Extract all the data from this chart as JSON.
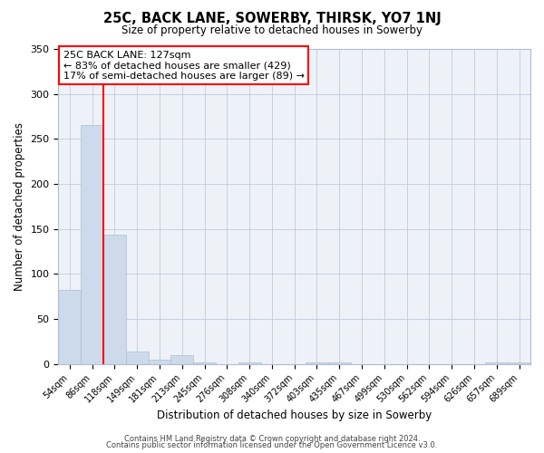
{
  "title": "25C, BACK LANE, SOWERBY, THIRSK, YO7 1NJ",
  "subtitle": "Size of property relative to detached houses in Sowerby",
  "xlabel": "Distribution of detached houses by size in Sowerby",
  "ylabel": "Number of detached properties",
  "bin_labels": [
    "54sqm",
    "86sqm",
    "118sqm",
    "149sqm",
    "181sqm",
    "213sqm",
    "245sqm",
    "276sqm",
    "308sqm",
    "340sqm",
    "372sqm",
    "403sqm",
    "435sqm",
    "467sqm",
    "499sqm",
    "530sqm",
    "562sqm",
    "594sqm",
    "626sqm",
    "657sqm",
    "689sqm"
  ],
  "bar_heights": [
    82,
    265,
    144,
    14,
    5,
    10,
    2,
    0,
    2,
    0,
    0,
    2,
    2,
    0,
    0,
    0,
    0,
    0,
    0,
    2,
    2
  ],
  "bar_color": "#cddaeb",
  "bar_edgecolor": "#a8bdd4",
  "ylim": [
    0,
    350
  ],
  "yticks": [
    0,
    50,
    100,
    150,
    200,
    250,
    300,
    350
  ],
  "annotation_title": "25C BACK LANE: 127sqm",
  "annotation_line1": "← 83% of detached houses are smaller (429)",
  "annotation_line2": "17% of semi-detached houses are larger (89) →",
  "footer1": "Contains HM Land Registry data © Crown copyright and database right 2024.",
  "footer2": "Contains public sector information licensed under the Open Government Licence v3.0.",
  "plot_background": "#eef2f8",
  "grid_color": "#c5cfe0"
}
